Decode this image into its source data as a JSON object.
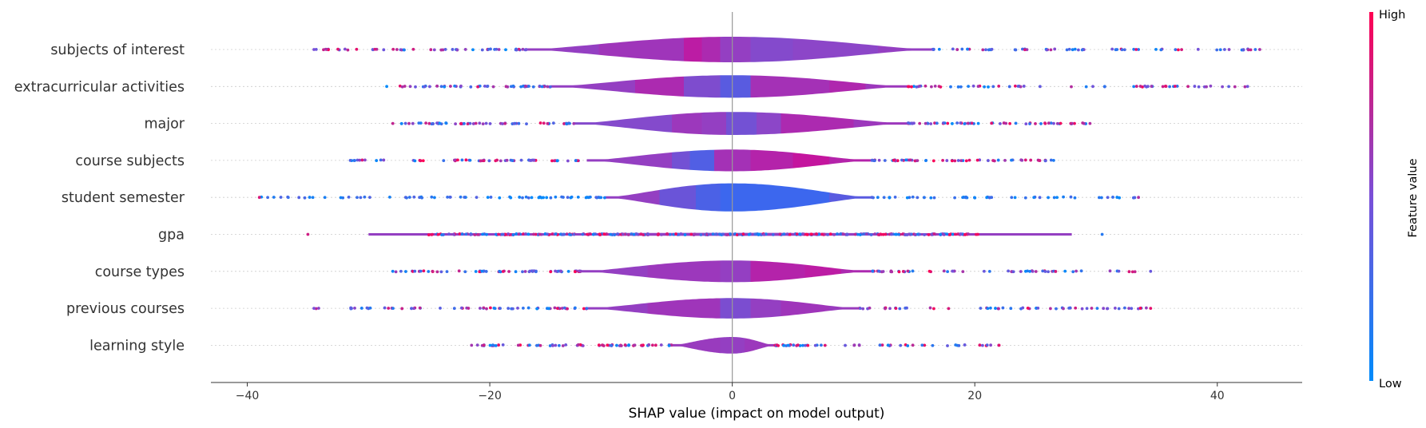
{
  "chart_data": {
    "type": "violin-beeswarm",
    "xlabel": "SHAP value (impact on model output)",
    "xlim": [
      -43,
      47
    ],
    "xticks": [
      -40,
      -20,
      0,
      20,
      40
    ],
    "xtick_labels": [
      "−40",
      "−20",
      "0",
      "20",
      "40"
    ],
    "colorbar": {
      "label": "Feature value",
      "high": "High",
      "low": "Low",
      "colors": [
        "#008bfb",
        "#ff0052"
      ]
    },
    "colors": {
      "low": "#008bfb",
      "high": "#ff0052",
      "zero_line": "#999999"
    },
    "features": [
      {
        "name": "subjects of interest",
        "range": [
          -34.5,
          43.5
        ],
        "body": [
          -17,
          16.5
        ],
        "thick": 1.0,
        "bands": [
          [
            -17,
            0.55
          ],
          [
            -11,
            0.62
          ],
          [
            -4,
            0.8
          ],
          [
            -2.5,
            0.7
          ],
          [
            -1,
            0.55
          ],
          [
            1.5,
            0.45
          ],
          [
            5,
            0.5
          ],
          [
            12,
            0.55
          ]
        ]
      },
      {
        "name": "extracurricular activities",
        "range": [
          -28.5,
          42.5
        ],
        "body": [
          -15,
          14.5
        ],
        "thick": 0.88,
        "bands": [
          [
            -15,
            0.55
          ],
          [
            -8,
            0.7
          ],
          [
            -4,
            0.42
          ],
          [
            -1,
            0.2
          ],
          [
            1.5,
            0.65
          ],
          [
            8,
            0.72
          ],
          [
            11,
            0.6
          ]
        ]
      },
      {
        "name": "major",
        "range": [
          -28,
          29.5
        ],
        "body": [
          -13,
          14.5
        ],
        "thick": 0.9,
        "bands": [
          [
            -13,
            0.45
          ],
          [
            -5,
            0.6
          ],
          [
            -2.5,
            0.55
          ],
          [
            -0.5,
            0.35
          ],
          [
            2,
            0.5
          ],
          [
            4,
            0.7
          ],
          [
            10,
            0.6
          ]
        ]
      },
      {
        "name": "course subjects",
        "range": [
          -31.5,
          26.5
        ],
        "body": [
          -12,
          11.5
        ],
        "thick": 0.85,
        "bands": [
          [
            -12,
            0.55
          ],
          [
            -5,
            0.35
          ],
          [
            -3.5,
            0.15
          ],
          [
            -1.5,
            0.65
          ],
          [
            1.5,
            0.75
          ],
          [
            5,
            0.85
          ],
          [
            8,
            0.75
          ]
        ]
      },
      {
        "name": "student semester",
        "range": [
          -39,
          33.5
        ],
        "body": [
          -10.5,
          11.5
        ],
        "thick": 1.1,
        "bands": [
          [
            -10.5,
            0.55
          ],
          [
            -6,
            0.3
          ],
          [
            -3,
            0.12
          ],
          [
            -1,
            0.03
          ],
          [
            8,
            0.2
          ]
        ]
      },
      {
        "name": "gpa",
        "range": [
          -35,
          30.5
        ],
        "body": [
          -30,
          28
        ],
        "thick": 0.12,
        "bands": [
          [
            -30,
            0.55
          ]
        ]
      },
      {
        "name": "course types",
        "range": [
          -28,
          34.5
        ],
        "body": [
          -12.5,
          11.5
        ],
        "thick": 0.85,
        "bands": [
          [
            -12.5,
            0.55
          ],
          [
            -7,
            0.6
          ],
          [
            -3,
            0.6
          ],
          [
            -1,
            0.55
          ],
          [
            1.5,
            0.75
          ],
          [
            6,
            0.8
          ],
          [
            9,
            0.7
          ]
        ]
      },
      {
        "name": "previous courses",
        "range": [
          -34.5,
          34.5
        ],
        "body": [
          -12,
          10.5
        ],
        "thick": 0.8,
        "bands": [
          [
            -12,
            0.55
          ],
          [
            -7,
            0.62
          ],
          [
            -1,
            0.4
          ],
          [
            1.5,
            0.55
          ],
          [
            4,
            0.62
          ],
          [
            8,
            0.58
          ]
        ]
      },
      {
        "name": "learning style",
        "range": [
          -21.5,
          22
        ],
        "body": [
          -5,
          3.5
        ],
        "thick": 0.65,
        "bands": [
          [
            -5,
            0.58
          ],
          [
            -1,
            0.55
          ],
          [
            1,
            0.6
          ]
        ]
      }
    ]
  }
}
